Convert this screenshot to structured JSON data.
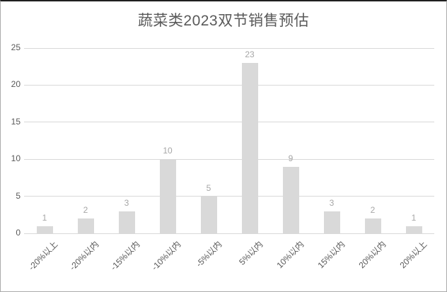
{
  "chart_data": {
    "type": "bar",
    "title": "蔬菜类2023双节销售预估",
    "categories": [
      "-20%以上",
      "-20%以内",
      "-15%以内",
      "-10%以内",
      "-5%以内",
      "5%以内",
      "10%以内",
      "15%以内",
      "20%以内",
      "20%以上"
    ],
    "values": [
      1,
      2,
      3,
      10,
      5,
      23,
      9,
      3,
      2,
      1
    ],
    "xlabel": "",
    "ylabel": "",
    "ylim": [
      0,
      25
    ],
    "yticks": [
      0,
      5,
      10,
      15,
      20,
      25
    ],
    "grid": true,
    "legend": false,
    "data_labels": true,
    "bar_color": "#d9d9d9",
    "gridline_color": "#d9d9d9",
    "value_label_color": "#a6a6a6",
    "axis_text_color": "#595959",
    "title_color": "#595959"
  }
}
